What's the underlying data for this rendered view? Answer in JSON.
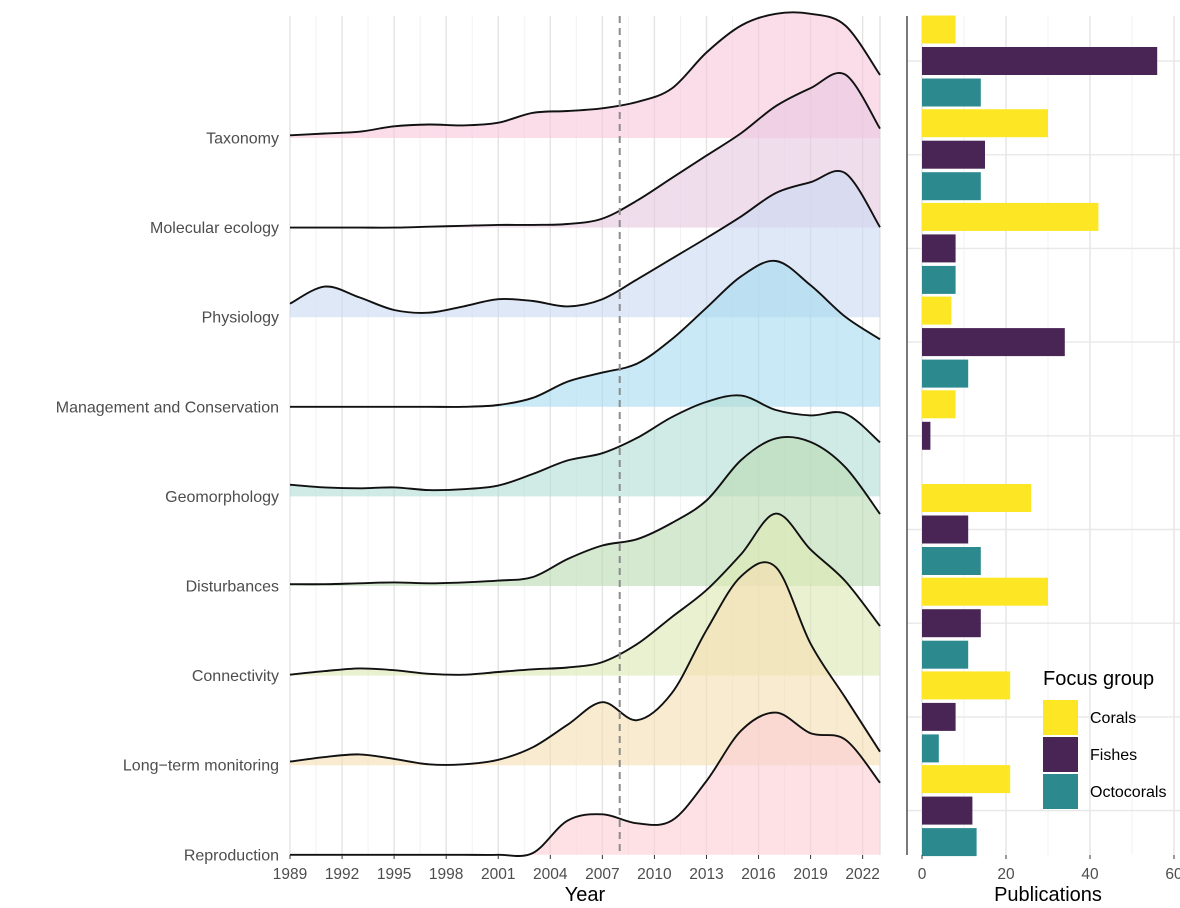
{
  "chart_data": [
    {
      "type": "area",
      "subtype": "ridgeline-density",
      "title": "",
      "xlabel": "Year",
      "ylabel": "",
      "xlim": [
        1989,
        2023
      ],
      "x_ticks": [
        "1989",
        "1992",
        "1995",
        "1998",
        "2001",
        "2004",
        "2007",
        "2010",
        "2013",
        "2016",
        "2019",
        "2022"
      ],
      "reference_line": {
        "x": 2008,
        "style": "dashed"
      },
      "x": [
        1989,
        1991,
        1993,
        1995,
        1997,
        1999,
        2001,
        2003,
        2005,
        2007,
        2009,
        2011,
        2013,
        2015,
        2017,
        2019,
        2021,
        2023
      ],
      "series": [
        {
          "name": "Taxonomy",
          "color": "#f8c6dc",
          "values": [
            0.03,
            0.05,
            0.07,
            0.13,
            0.15,
            0.14,
            0.17,
            0.28,
            0.3,
            0.33,
            0.4,
            0.55,
            0.95,
            1.25,
            1.38,
            1.38,
            1.25,
            0.7
          ]
        },
        {
          "name": "Molecular ecology",
          "color": "#e6c8e0",
          "values": [
            0.0,
            0.0,
            0.0,
            0.0,
            0.01,
            0.02,
            0.03,
            0.03,
            0.04,
            0.1,
            0.3,
            0.55,
            0.8,
            1.05,
            1.35,
            1.55,
            1.7,
            1.1
          ]
        },
        {
          "name": "Physiology",
          "color": "#cbdaf2",
          "values": [
            0.15,
            0.34,
            0.22,
            0.08,
            0.05,
            0.12,
            0.2,
            0.18,
            0.12,
            0.2,
            0.42,
            0.65,
            0.88,
            1.12,
            1.38,
            1.5,
            1.6,
            1.0
          ]
        },
        {
          "name": "Management and Conservation",
          "color": "#a6dcef",
          "values": [
            0.0,
            0.0,
            0.0,
            0.0,
            0.0,
            0.0,
            0.02,
            0.1,
            0.28,
            0.38,
            0.48,
            0.75,
            1.1,
            1.45,
            1.62,
            1.35,
            1.0,
            0.75
          ]
        },
        {
          "name": "Geomorphology",
          "color": "#b3ddd5",
          "values": [
            0.13,
            0.1,
            0.09,
            0.1,
            0.07,
            0.08,
            0.12,
            0.25,
            0.4,
            0.48,
            0.65,
            0.88,
            1.05,
            1.12,
            0.96,
            0.9,
            0.92,
            0.6
          ]
        },
        {
          "name": "Disturbances",
          "color": "#b9dcb3",
          "values": [
            0.02,
            0.02,
            0.03,
            0.04,
            0.03,
            0.04,
            0.06,
            0.1,
            0.3,
            0.45,
            0.52,
            0.7,
            0.95,
            1.4,
            1.64,
            1.6,
            1.32,
            0.8
          ]
        },
        {
          "name": "Connectivity",
          "color": "#dde8b3",
          "values": [
            0.01,
            0.05,
            0.08,
            0.06,
            0.02,
            0.01,
            0.04,
            0.07,
            0.09,
            0.15,
            0.35,
            0.65,
            0.95,
            1.35,
            1.8,
            1.4,
            1.05,
            0.55
          ]
        },
        {
          "name": "Long−term monitoring",
          "color": "#f5deb3",
          "values": [
            0.04,
            0.09,
            0.12,
            0.07,
            0.01,
            0.01,
            0.06,
            0.2,
            0.45,
            0.7,
            0.5,
            0.8,
            1.5,
            2.1,
            2.2,
            1.35,
            0.75,
            0.15
          ]
        },
        {
          "name": "Reproduction",
          "color": "#fbcfd5",
          "values": [
            0.0,
            0.0,
            0.0,
            0.0,
            0.0,
            0.0,
            0.0,
            0.02,
            0.38,
            0.45,
            0.35,
            0.38,
            0.82,
            1.38,
            1.58,
            1.35,
            1.28,
            0.8
          ]
        }
      ]
    },
    {
      "type": "bar",
      "orientation": "horizontal",
      "title": "",
      "xlabel": "Publications",
      "ylabel": "",
      "xlim": [
        0,
        60
      ],
      "x_ticks": [
        "0",
        "20",
        "40",
        "60"
      ],
      "categories": [
        "Taxonomy",
        "Molecular ecology",
        "Physiology",
        "Management and Conservation",
        "Geomorphology",
        "Disturbances",
        "Connectivity",
        "Long−term monitoring",
        "Reproduction"
      ],
      "series": [
        {
          "name": "Corals",
          "color": "#fde725",
          "values": [
            8,
            30,
            42,
            7,
            8,
            26,
            30,
            21,
            21
          ]
        },
        {
          "name": "Fishes",
          "color": "#482555",
          "values": [
            56,
            15,
            8,
            34,
            2,
            11,
            14,
            8,
            12
          ]
        },
        {
          "name": "Octocorals",
          "color": "#2c8a8f",
          "values": [
            14,
            14,
            8,
            11,
            0,
            14,
            11,
            4,
            13
          ]
        }
      ],
      "legend": {
        "title": "Focus group",
        "placement": "bottom-right",
        "items": [
          "Corals",
          "Fishes",
          "Octocorals"
        ]
      }
    }
  ]
}
